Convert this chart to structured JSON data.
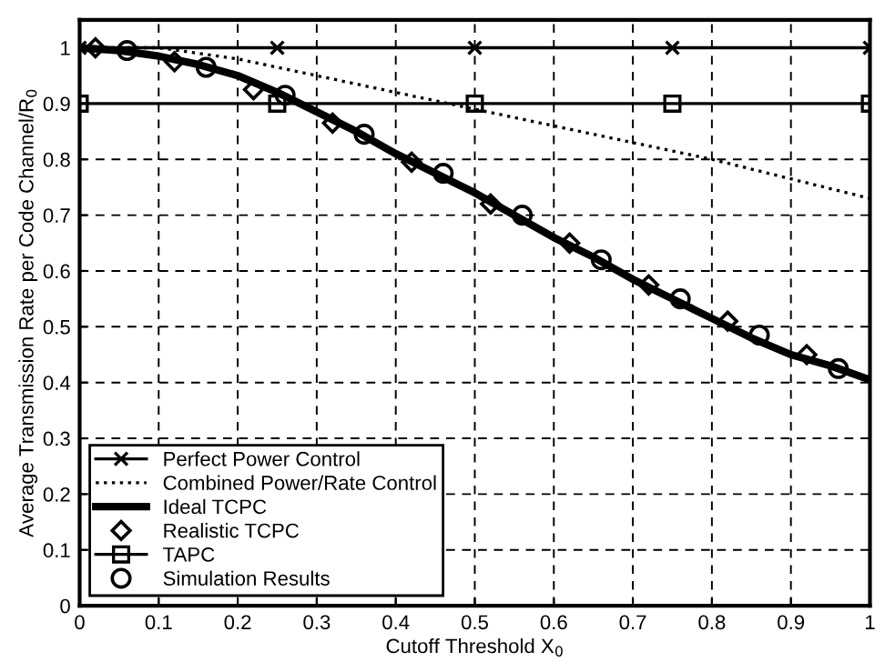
{
  "chart_data": {
    "type": "line",
    "xlabel": "Cutoff Threshold X$_{0}$",
    "ylabel": "Average Transmission Rate per Code Channel/R$_{0}$",
    "xlim": [
      0,
      1
    ],
    "ylim": [
      0,
      1.05
    ],
    "xticks": [
      0,
      0.1,
      0.2,
      0.3,
      0.4,
      0.5,
      0.6,
      0.7,
      0.8,
      0.9,
      1
    ],
    "yticks": [
      0,
      0.1,
      0.2,
      0.3,
      0.4,
      0.5,
      0.6,
      0.7,
      0.8,
      0.9,
      1
    ],
    "grid": true,
    "legend": "bottom left",
    "series": [
      {
        "name": "Perfect Power Control",
        "color": "#000000",
        "marker": "cross",
        "line_style": "solid",
        "x": [
          0,
          0.25,
          0.5,
          0.75,
          1
        ],
        "values": [
          1,
          1,
          1,
          1,
          1
        ]
      },
      {
        "name": "Combined Power/Rate Control",
        "color": "#000000",
        "marker": "none",
        "line_style": "dotted",
        "x": [
          0,
          0.1,
          0.2,
          0.3,
          0.4,
          0.5,
          0.6,
          0.7,
          0.8,
          0.9,
          1
        ],
        "values": [
          1,
          1,
          0.98,
          0.95,
          0.92,
          0.89,
          0.86,
          0.83,
          0.8,
          0.765,
          0.73
        ]
      },
      {
        "name": "Ideal TCPC",
        "color": "#000000",
        "marker": "none",
        "line_style": "solid",
        "x": [
          0,
          0.05,
          0.1,
          0.15,
          0.2,
          0.25,
          0.3,
          0.35,
          0.4,
          0.45,
          0.5,
          0.55,
          0.6,
          0.65,
          0.7,
          0.75,
          0.8,
          0.85,
          0.9,
          0.95,
          1
        ],
        "values": [
          1,
          0.995,
          0.985,
          0.97,
          0.95,
          0.92,
          0.885,
          0.85,
          0.81,
          0.775,
          0.74,
          0.7,
          0.66,
          0.625,
          0.585,
          0.55,
          0.515,
          0.48,
          0.45,
          0.43,
          0.405
        ]
      },
      {
        "name": "Realistic TCPC",
        "type": "scatter",
        "color": "#000000",
        "marker": "diamond",
        "x": [
          0.02,
          0.12,
          0.22,
          0.32,
          0.42,
          0.52,
          0.62,
          0.72,
          0.82,
          0.92
        ],
        "values": [
          1,
          0.975,
          0.925,
          0.865,
          0.795,
          0.72,
          0.65,
          0.575,
          0.51,
          0.45
        ]
      },
      {
        "name": "TAPC",
        "color": "#000000",
        "marker": "square",
        "line_style": "solid",
        "x": [
          0,
          0.25,
          0.5,
          0.75,
          1
        ],
        "values": [
          0.9,
          0.9,
          0.9,
          0.9,
          0.9
        ]
      },
      {
        "name": "Simulation Results",
        "type": "scatter",
        "color": "#000000",
        "marker": "circle",
        "x": [
          0.06,
          0.16,
          0.26,
          0.36,
          0.46,
          0.56,
          0.66,
          0.76,
          0.86,
          0.96
        ],
        "values": [
          0.995,
          0.965,
          0.915,
          0.845,
          0.775,
          0.7,
          0.62,
          0.55,
          0.485,
          0.425
        ]
      }
    ]
  }
}
